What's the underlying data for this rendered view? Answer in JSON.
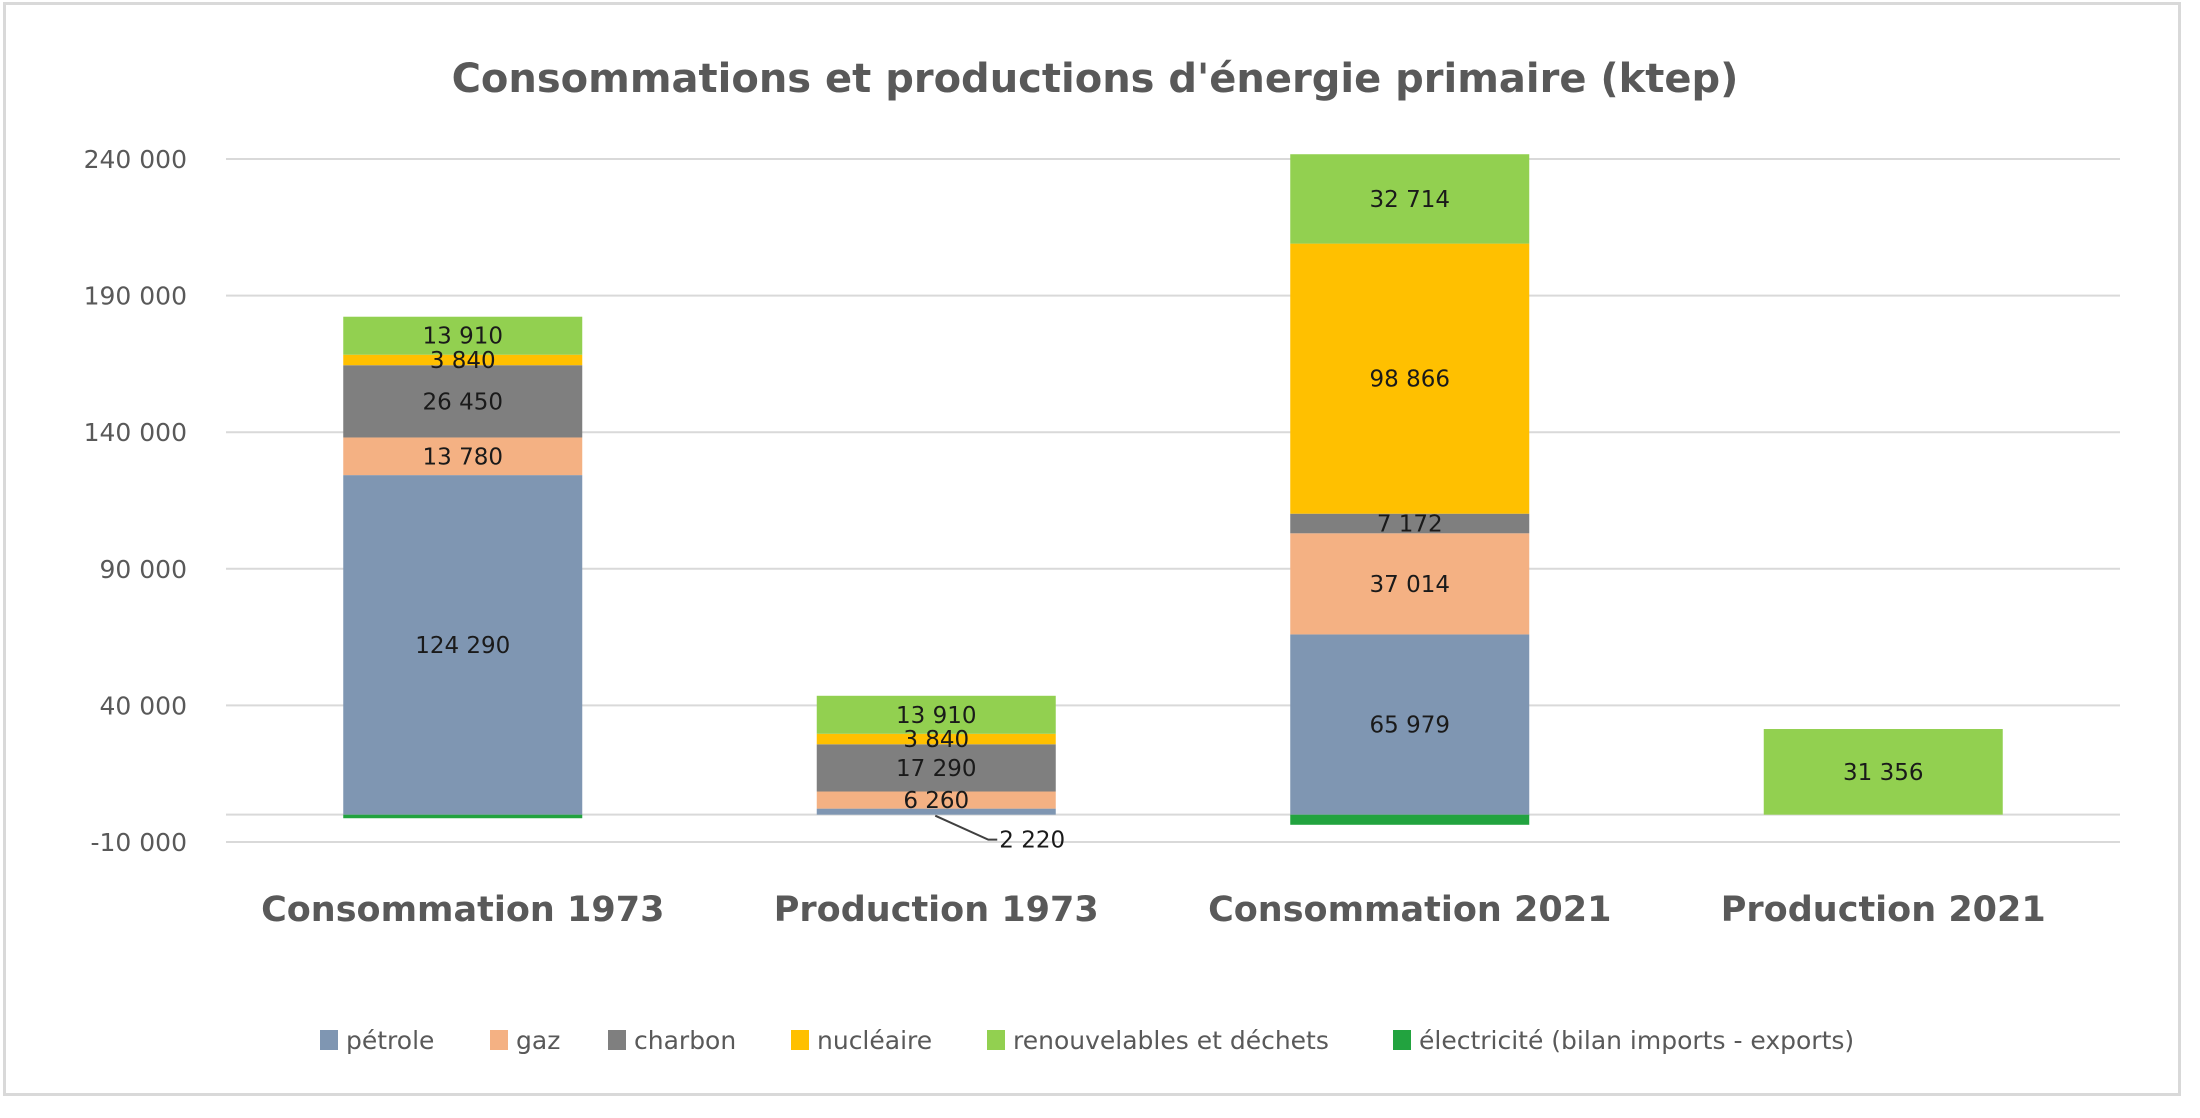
{
  "chart_data": {
    "type": "bar",
    "stacked": true,
    "title": "Consommations et productions d'énergie primaire (ktep)",
    "xlabel": "",
    "ylabel": "",
    "ylim": [
      -10000,
      240000
    ],
    "yticks": [
      -10000,
      40000,
      90000,
      140000,
      190000,
      240000
    ],
    "ytick_labels": [
      "-10 000",
      "40 000",
      "90 000",
      "140 000",
      "190 000",
      "240 000"
    ],
    "grid": true,
    "legend_position": "bottom",
    "categories": [
      "Consommation 1973",
      "Production 1973",
      "Consommation 2021",
      "Production 2021"
    ],
    "series": [
      {
        "name": "pétrole",
        "color": "#7f96b2",
        "values": [
          124290,
          2220,
          65979,
          0
        ],
        "labels": [
          "124 290",
          "2 220",
          "65 979",
          ""
        ]
      },
      {
        "name": "gaz",
        "color": "#f4b183",
        "values": [
          13780,
          6260,
          37014,
          0
        ],
        "labels": [
          "13 780",
          "6 260",
          "37 014",
          ""
        ]
      },
      {
        "name": "charbon",
        "color": "#7f7f7f",
        "values": [
          26450,
          17290,
          7172,
          0
        ],
        "labels": [
          "26 450",
          "17 290",
          "7 172",
          ""
        ]
      },
      {
        "name": "nucléaire",
        "color": "#ffc000",
        "values": [
          3840,
          3840,
          98866,
          0
        ],
        "labels": [
          "3 840",
          "3 840",
          "98 866",
          ""
        ]
      },
      {
        "name": "renouvelables et déchets",
        "color": "#92d050",
        "values": [
          13910,
          13910,
          32714,
          31356
        ],
        "labels": [
          "13 910",
          "13 910",
          "32 714",
          "31 356"
        ]
      },
      {
        "name": "électricité (bilan imports - exports)",
        "color": "#22a33f",
        "values": [
          -1300,
          0,
          -3700,
          0
        ],
        "labels": [
          "",
          "",
          "",
          ""
        ]
      }
    ],
    "callouts": [
      {
        "category_index": 1,
        "series_index": 0,
        "text": "2 220"
      }
    ]
  }
}
